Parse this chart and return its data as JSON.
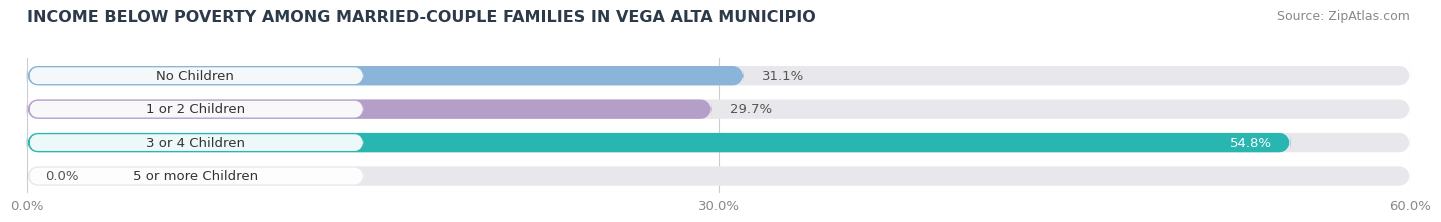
{
  "title": "INCOME BELOW POVERTY AMONG MARRIED-COUPLE FAMILIES IN VEGA ALTA MUNICIPIO",
  "source": "Source: ZipAtlas.com",
  "categories": [
    "No Children",
    "1 or 2 Children",
    "3 or 4 Children",
    "5 or more Children"
  ],
  "values": [
    31.1,
    29.7,
    54.8,
    0.0
  ],
  "bar_colors": [
    "#8ab4d8",
    "#b49fc8",
    "#29b5b0",
    "#b0b0d0"
  ],
  "label_colors": [
    "#444444",
    "#444444",
    "#ffffff",
    "#444444"
  ],
  "xlim": [
    0,
    60
  ],
  "xticks": [
    0.0,
    30.0,
    60.0
  ],
  "xtick_labels": [
    "0.0%",
    "30.0%",
    "60.0%"
  ],
  "background_color": "#ffffff",
  "bar_background_color": "#e8e8ec",
  "title_fontsize": 11.5,
  "source_fontsize": 9,
  "label_fontsize": 9.5,
  "tick_fontsize": 9.5,
  "category_fontsize": 9.5
}
